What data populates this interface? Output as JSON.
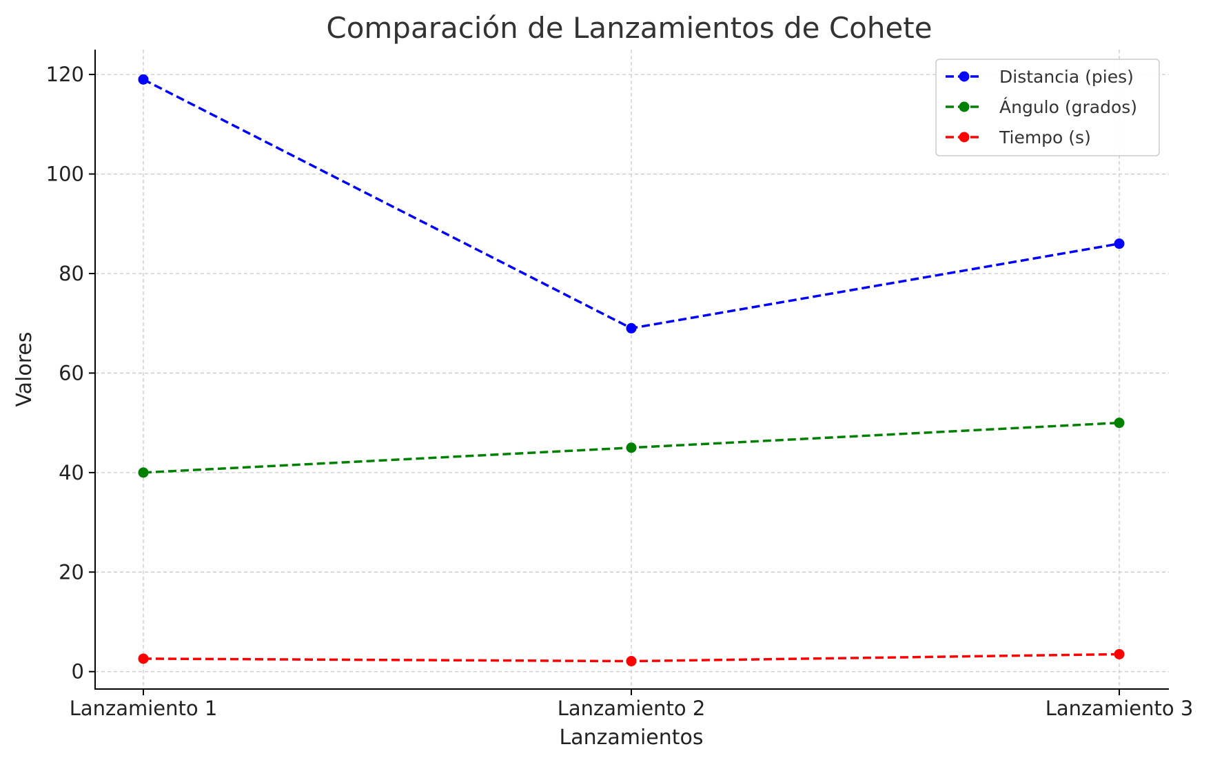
{
  "chart_data": {
    "type": "line",
    "title": "Comparación de Lanzamientos de Cohete",
    "xlabel": "Lanzamientos",
    "ylabel": "Valores",
    "categories": [
      "Lanzamiento 1",
      "Lanzamiento 2",
      "Lanzamiento 3"
    ],
    "ylim": [
      -3.5,
      125
    ],
    "yticks": [
      0,
      20,
      40,
      60,
      80,
      100,
      120
    ],
    "grid": true,
    "legend_position": "top-right",
    "line_style": "dashed",
    "marker": "circle",
    "series": [
      {
        "name": "Distancia (pies)",
        "values": [
          119,
          69,
          86
        ],
        "color": "#0000ff"
      },
      {
        "name": "Ángulo (grados)",
        "values": [
          40,
          45,
          50
        ],
        "color": "#008000"
      },
      {
        "name": "Tiempo (s)",
        "values": [
          2.6,
          2.1,
          3.5
        ],
        "color": "#ff0000"
      }
    ]
  }
}
